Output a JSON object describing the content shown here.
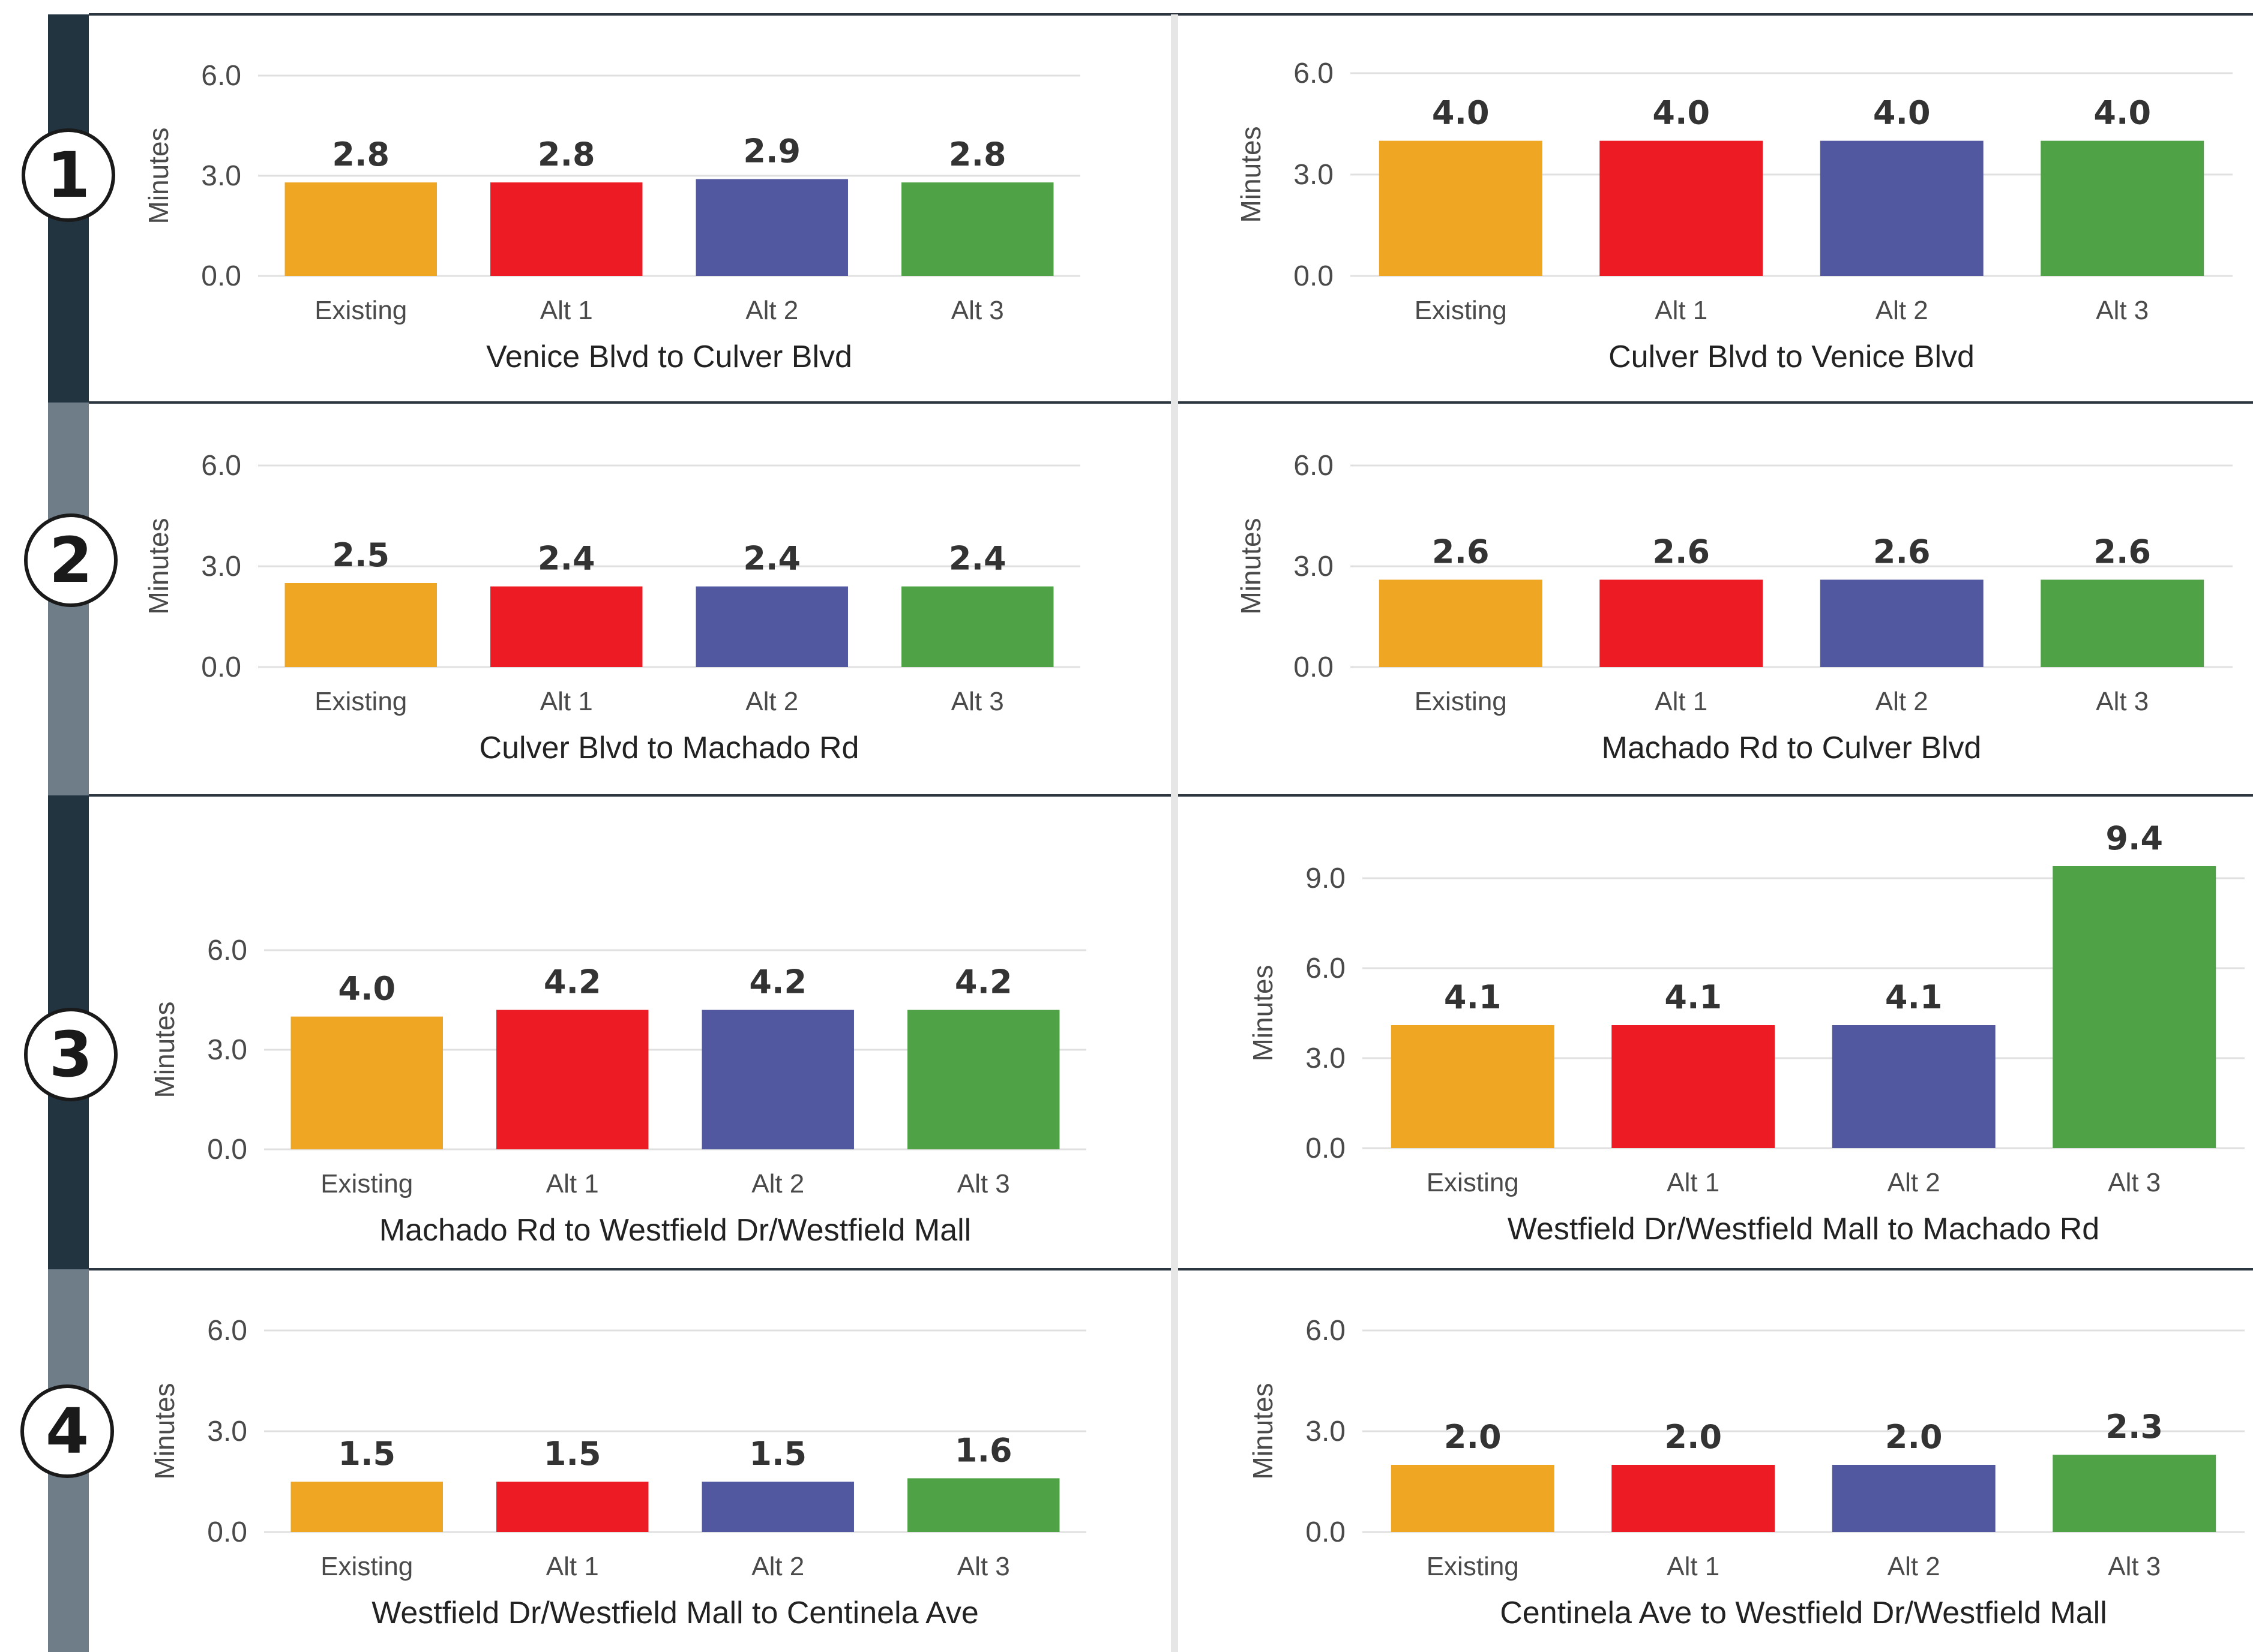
{
  "colors": {
    "existing": "#eea623",
    "alt1": "#ed1c24",
    "alt2": "#52589f",
    "alt3": "#50a247",
    "strip_dark": "#213440",
    "strip_light": "#6f7d88"
  },
  "segments": [
    {
      "number": "1"
    },
    {
      "number": "2"
    },
    {
      "number": "3"
    },
    {
      "number": "4"
    }
  ],
  "chart_data": [
    {
      "type": "bar",
      "title": "Venice Blvd to Culver Blvd",
      "ylabel": "Minutes",
      "categories": [
        "Existing",
        "Alt 1",
        "Alt 2",
        "Alt 3"
      ],
      "values": [
        2.8,
        2.8,
        2.9,
        2.8
      ],
      "value_labels": [
        "2.8",
        "2.8",
        "2.9",
        "2.8"
      ],
      "yticks": [
        "0.0",
        "3.0",
        "6.0"
      ],
      "ylim": [
        0,
        6
      ],
      "grid": true
    },
    {
      "type": "bar",
      "title": "Culver Blvd to Venice Blvd",
      "ylabel": "Minutes",
      "categories": [
        "Existing",
        "Alt 1",
        "Alt 2",
        "Alt 3"
      ],
      "values": [
        4.0,
        4.0,
        4.0,
        4.0
      ],
      "value_labels": [
        "4.0",
        "4.0",
        "4.0",
        "4.0"
      ],
      "yticks": [
        "0.0",
        "3.0",
        "6.0"
      ],
      "ylim": [
        0,
        6
      ],
      "grid": true
    },
    {
      "type": "bar",
      "title": "Culver Blvd to Machado Rd",
      "ylabel": "Minutes",
      "categories": [
        "Existing",
        "Alt 1",
        "Alt 2",
        "Alt 3"
      ],
      "values": [
        2.5,
        2.4,
        2.4,
        2.4
      ],
      "value_labels": [
        "2.5",
        "2.4",
        "2.4",
        "2.4"
      ],
      "yticks": [
        "0.0",
        "3.0",
        "6.0"
      ],
      "ylim": [
        0,
        6
      ],
      "grid": true
    },
    {
      "type": "bar",
      "title": "Machado Rd to Culver Blvd",
      "ylabel": "Minutes",
      "categories": [
        "Existing",
        "Alt 1",
        "Alt 2",
        "Alt 3"
      ],
      "values": [
        2.6,
        2.6,
        2.6,
        2.6
      ],
      "value_labels": [
        "2.6",
        "2.6",
        "2.6",
        "2.6"
      ],
      "yticks": [
        "0.0",
        "3.0",
        "6.0"
      ],
      "ylim": [
        0,
        6
      ],
      "grid": true
    },
    {
      "type": "bar",
      "title": "Machado Rd to Westfield Dr/Westfield Mall",
      "ylabel": "Minutes",
      "categories": [
        "Existing",
        "Alt 1",
        "Alt 2",
        "Alt 3"
      ],
      "values": [
        4.0,
        4.2,
        4.2,
        4.2
      ],
      "value_labels": [
        "4.0",
        "4.2",
        "4.2",
        "4.2"
      ],
      "yticks": [
        "0.0",
        "3.0",
        "6.0"
      ],
      "ylim": [
        0,
        6
      ],
      "grid": true
    },
    {
      "type": "bar",
      "title": "Westfield Dr/Westfield Mall to Machado Rd",
      "ylabel": "Minutes",
      "categories": [
        "Existing",
        "Alt 1",
        "Alt 2",
        "Alt 3"
      ],
      "values": [
        4.1,
        4.1,
        4.1,
        9.4
      ],
      "value_labels": [
        "4.1",
        "4.1",
        "4.1",
        "9.4"
      ],
      "yticks": [
        "0.0",
        "3.0",
        "6.0",
        "9.0"
      ],
      "ylim": [
        0,
        9
      ],
      "grid": true
    },
    {
      "type": "bar",
      "title": "Westfield Dr/Westfield Mall to Centinela Ave",
      "ylabel": "Minutes",
      "categories": [
        "Existing",
        "Alt 1",
        "Alt 2",
        "Alt 3"
      ],
      "values": [
        1.5,
        1.5,
        1.5,
        1.6
      ],
      "value_labels": [
        "1.5",
        "1.5",
        "1.5",
        "1.6"
      ],
      "yticks": [
        "0.0",
        "3.0",
        "6.0"
      ],
      "ylim": [
        0,
        6
      ],
      "grid": true
    },
    {
      "type": "bar",
      "title": "Centinela Ave to Westfield Dr/Westfield Mall",
      "ylabel": "Minutes",
      "categories": [
        "Existing",
        "Alt 1",
        "Alt 2",
        "Alt 3"
      ],
      "values": [
        2.0,
        2.0,
        2.0,
        2.3
      ],
      "value_labels": [
        "2.0",
        "2.0",
        "2.0",
        "2.3"
      ],
      "yticks": [
        "0.0",
        "3.0",
        "6.0"
      ],
      "ylim": [
        0,
        6
      ],
      "grid": true
    }
  ]
}
